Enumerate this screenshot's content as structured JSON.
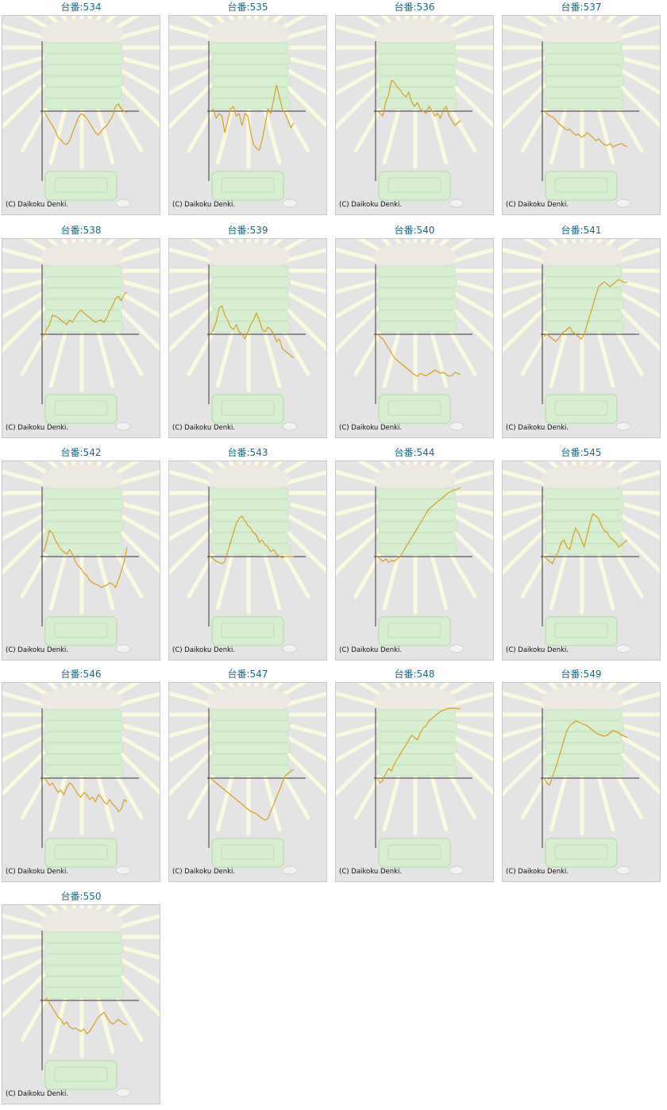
{
  "chart_data": [
    {
      "type": "line",
      "title": "台番:534",
      "credit": "(C) Daikoku Denki.",
      "y": [
        0,
        -0.1,
        -0.2,
        -0.3,
        -0.4,
        -0.55,
        -0.6,
        -0.68,
        -0.7,
        -0.62,
        -0.45,
        -0.3,
        -0.15,
        -0.05,
        -0.08,
        -0.15,
        -0.25,
        -0.35,
        -0.45,
        -0.5,
        -0.42,
        -0.35,
        -0.3,
        -0.2,
        -0.1,
        0.1,
        0.15,
        0.05,
        0.0,
        -0.03
      ]
    },
    {
      "type": "line",
      "title": "台番:535",
      "credit": "(C) Daikoku Denki.",
      "y": [
        0,
        0.05,
        -0.15,
        -0.05,
        -0.1,
        -0.45,
        -0.2,
        0.05,
        0.1,
        -0.1,
        -0.05,
        -0.3,
        -0.05,
        -0.1,
        -0.45,
        -0.7,
        -0.78,
        -0.82,
        -0.6,
        -0.3,
        0.05,
        -0.05,
        0.25,
        0.55,
        0.3,
        0.05,
        -0.05,
        -0.2,
        -0.35,
        -0.25
      ]
    },
    {
      "type": "line",
      "title": "台番:536",
      "credit": "(C) Daikoku Denki.",
      "y": [
        0,
        -0.05,
        -0.1,
        0.2,
        0.35,
        0.65,
        0.6,
        0.5,
        0.45,
        0.35,
        0.3,
        0.4,
        0.2,
        0.1,
        0.18,
        0.05,
        0.0,
        -0.05,
        0.1,
        0.02,
        -0.1,
        -0.05,
        -0.15,
        0.02,
        0.1,
        -0.1,
        -0.2,
        -0.3,
        -0.25,
        -0.2
      ]
    },
    {
      "type": "line",
      "title": "台番:537",
      "credit": "(C) Daikoku Denki.",
      "y": [
        0,
        -0.05,
        -0.1,
        -0.12,
        -0.18,
        -0.25,
        -0.3,
        -0.35,
        -0.4,
        -0.38,
        -0.45,
        -0.5,
        -0.48,
        -0.55,
        -0.52,
        -0.45,
        -0.5,
        -0.55,
        -0.62,
        -0.58,
        -0.65,
        -0.7,
        -0.72,
        -0.68,
        -0.75,
        -0.72,
        -0.7,
        -0.68,
        -0.72,
        -0.75
      ]
    },
    {
      "type": "line",
      "title": "台番:538",
      "credit": "(C) Daikoku Denki.",
      "y": [
        -0.05,
        0.1,
        0.2,
        0.4,
        0.38,
        0.35,
        0.3,
        0.25,
        0.2,
        0.3,
        0.25,
        0.35,
        0.45,
        0.5,
        0.45,
        0.4,
        0.35,
        0.3,
        0.25,
        0.28,
        0.3,
        0.25,
        0.35,
        0.5,
        0.6,
        0.75,
        0.8,
        0.7,
        0.85,
        0.88
      ]
    },
    {
      "type": "line",
      "title": "台番:539",
      "credit": "(C) Daikoku Denki.",
      "y": [
        0,
        0.1,
        0.25,
        0.55,
        0.6,
        0.4,
        0.3,
        0.15,
        0.1,
        0.2,
        0.05,
        0.0,
        -0.1,
        0.05,
        0.2,
        0.3,
        0.45,
        0.3,
        0.1,
        0.05,
        0.15,
        0.1,
        0.0,
        -0.15,
        -0.1,
        -0.3,
        -0.35,
        -0.4,
        -0.45,
        -0.5
      ]
    },
    {
      "type": "line",
      "title": "台番:540",
      "credit": "(C) Daikoku Denki.",
      "y": [
        0,
        -0.05,
        -0.1,
        -0.2,
        -0.3,
        -0.4,
        -0.5,
        -0.55,
        -0.6,
        -0.65,
        -0.7,
        -0.75,
        -0.8,
        -0.85,
        -0.88,
        -0.82,
        -0.85,
        -0.87,
        -0.83,
        -0.8,
        -0.75,
        -0.78,
        -0.82,
        -0.8,
        -0.85,
        -0.88,
        -0.87,
        -0.8,
        -0.82,
        -0.85
      ]
    },
    {
      "type": "line",
      "title": "台番:541",
      "credit": "(C) Daikoku Denki.",
      "y": [
        -0.05,
        0.0,
        -0.05,
        -0.1,
        -0.15,
        -0.1,
        0.0,
        0.05,
        0.1,
        0.15,
        0.05,
        0.0,
        -0.05,
        -0.1,
        0.0,
        0.2,
        0.4,
        0.6,
        0.8,
        1.0,
        1.05,
        1.1,
        1.05,
        1.0,
        1.05,
        1.1,
        1.15,
        1.12,
        1.08,
        1.1
      ]
    },
    {
      "type": "line",
      "title": "台番:542",
      "credit": "(C) Daikoku Denki.",
      "y": [
        0.1,
        0.3,
        0.55,
        0.5,
        0.35,
        0.25,
        0.15,
        0.1,
        0.05,
        0.15,
        0.05,
        -0.1,
        -0.2,
        -0.25,
        -0.35,
        -0.4,
        -0.5,
        -0.55,
        -0.58,
        -0.6,
        -0.65,
        -0.62,
        -0.6,
        -0.55,
        -0.58,
        -0.65,
        -0.5,
        -0.3,
        -0.1,
        0.2
      ]
    },
    {
      "type": "line",
      "title": "台番:543",
      "credit": "(C) Daikoku Denki.",
      "y": [
        0,
        -0.05,
        -0.1,
        -0.12,
        -0.15,
        -0.1,
        0.1,
        0.3,
        0.5,
        0.7,
        0.8,
        0.85,
        0.75,
        0.65,
        0.6,
        0.5,
        0.45,
        0.3,
        0.35,
        0.25,
        0.2,
        0.1,
        0.15,
        0.05,
        0.0,
        -0.02,
        0.0,
        0.0,
        0.0,
        0.0
      ]
    },
    {
      "type": "line",
      "title": "台番:544",
      "credit": "(C) Daikoku Denki.",
      "y": [
        0,
        -0.05,
        -0.1,
        -0.05,
        -0.12,
        -0.08,
        -0.1,
        -0.05,
        0.0,
        0.1,
        0.2,
        0.3,
        0.4,
        0.5,
        0.6,
        0.7,
        0.8,
        0.9,
        1.0,
        1.05,
        1.1,
        1.15,
        1.2,
        1.25,
        1.3,
        1.35,
        1.38,
        1.4,
        1.42,
        1.45
      ]
    },
    {
      "type": "line",
      "title": "台番:545",
      "credit": "(C) Daikoku Denki.",
      "y": [
        0,
        -0.05,
        -0.1,
        -0.15,
        0.0,
        0.1,
        0.3,
        0.35,
        0.2,
        0.15,
        0.4,
        0.6,
        0.5,
        0.35,
        0.2,
        0.45,
        0.7,
        0.9,
        0.85,
        0.8,
        0.65,
        0.55,
        0.5,
        0.4,
        0.35,
        0.3,
        0.2,
        0.25,
        0.3,
        0.35
      ]
    },
    {
      "type": "line",
      "title": "台番:546",
      "credit": "(C) Daikoku Denki.",
      "y": [
        0,
        -0.05,
        -0.15,
        -0.1,
        -0.2,
        -0.3,
        -0.25,
        -0.35,
        -0.2,
        -0.1,
        -0.15,
        -0.25,
        -0.35,
        -0.4,
        -0.3,
        -0.35,
        -0.45,
        -0.4,
        -0.5,
        -0.35,
        -0.4,
        -0.5,
        -0.55,
        -0.45,
        -0.55,
        -0.6,
        -0.7,
        -0.65,
        -0.45,
        -0.5
      ]
    },
    {
      "type": "line",
      "title": "台番:547",
      "credit": "(C) Daikoku Denki.",
      "y": [
        0,
        -0.05,
        -0.1,
        -0.15,
        -0.2,
        -0.25,
        -0.3,
        -0.35,
        -0.4,
        -0.45,
        -0.5,
        -0.55,
        -0.6,
        -0.65,
        -0.7,
        -0.72,
        -0.75,
        -0.8,
        -0.85,
        -0.88,
        -0.85,
        -0.7,
        -0.55,
        -0.4,
        -0.25,
        -0.1,
        0.05,
        0.1,
        0.15,
        0.18
      ]
    },
    {
      "type": "line",
      "title": "台番:548",
      "credit": "(C) Daikoku Denki.",
      "y": [
        0,
        -0.1,
        -0.05,
        0.1,
        0.2,
        0.15,
        0.3,
        0.4,
        0.5,
        0.6,
        0.7,
        0.8,
        0.9,
        0.85,
        0.8,
        0.95,
        1.05,
        1.1,
        1.2,
        1.25,
        1.3,
        1.35,
        1.4,
        1.42,
        1.45,
        1.48,
        1.5,
        1.48,
        1.46,
        1.45
      ]
    },
    {
      "type": "line",
      "title": "台番:549",
      "credit": "(C) Daikoku Denki.",
      "y": [
        0,
        -0.1,
        -0.15,
        0.05,
        0.2,
        0.4,
        0.6,
        0.8,
        1.0,
        1.1,
        1.15,
        1.2,
        1.18,
        1.15,
        1.12,
        1.1,
        1.05,
        1.0,
        0.95,
        0.92,
        0.9,
        0.88,
        0.9,
        0.95,
        1.0,
        0.98,
        0.95,
        0.9,
        0.88,
        0.85
      ]
    },
    {
      "type": "line",
      "title": "台番:550",
      "credit": "(C) Daikoku Denki.",
      "y": [
        0,
        0.05,
        -0.05,
        -0.15,
        -0.25,
        -0.35,
        -0.4,
        -0.5,
        -0.45,
        -0.55,
        -0.6,
        -0.58,
        -0.62,
        -0.65,
        -0.6,
        -0.7,
        -0.65,
        -0.55,
        -0.45,
        -0.35,
        -0.3,
        -0.25,
        -0.35,
        -0.45,
        -0.5,
        -0.45,
        -0.4,
        -0.45,
        -0.5,
        -0.5
      ]
    }
  ],
  "style": {
    "line_color": "#d9a020",
    "axis_color": "#333333",
    "panel_bg": "#e4e4e4",
    "title_color": "#1a6a8a",
    "burst_color": "#fbfae0",
    "mascot_color": "#d7efd0"
  }
}
